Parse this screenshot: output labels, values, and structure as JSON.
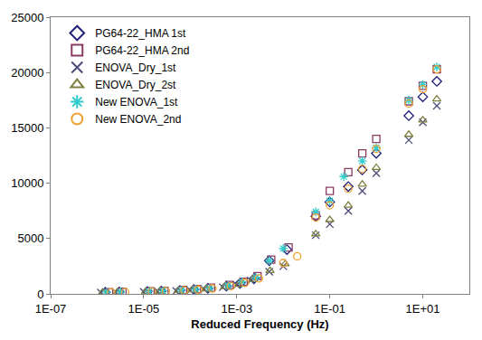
{
  "chart_data": {
    "type": "scatter",
    "x_label": "Reduced Frequency (Hz)",
    "log": "x",
    "grid": false,
    "legend": "top-left",
    "xlim": [
      1e-07,
      100
    ],
    "xticks": [
      {
        "value": 1e-07,
        "label": "1E-07"
      },
      {
        "value": 1e-05,
        "label": "1E-05"
      },
      {
        "value": 0.001,
        "label": "1E-03"
      },
      {
        "value": 0.1,
        "label": "1E-01"
      },
      {
        "value": 10,
        "label": "1E+01"
      }
    ],
    "ylim": [
      0,
      25000
    ],
    "yticks": [
      0,
      5000,
      10000,
      15000,
      20000,
      25000
    ],
    "series": [
      {
        "name": "PG64-22_HMA 1st",
        "color": "#1f1f7a",
        "marker": "diamond",
        "x": [
          1.5e-06,
          3e-06,
          1.2e-05,
          2.4e-05,
          6e-05,
          0.00012,
          0.00024,
          0.0006,
          0.0012,
          0.0024,
          0.005,
          0.012,
          0.05,
          0.1,
          0.25,
          0.5,
          1,
          5,
          10,
          20
        ],
        "values": [
          150,
          180,
          220,
          260,
          320,
          400,
          500,
          700,
          1000,
          1400,
          3000,
          4000,
          7000,
          8300,
          9700,
          11200,
          12700,
          16100,
          17800,
          19200
        ]
      },
      {
        "name": "PG64-22_HMA 2nd",
        "color": "#8b3a62",
        "marker": "square",
        "x": [
          1.8e-06,
          3.5e-06,
          1.4e-05,
          2.8e-05,
          7e-05,
          0.00014,
          0.00028,
          0.0007,
          0.0014,
          0.0028,
          0.0055,
          0.013,
          0.05,
          0.1,
          0.25,
          0.5,
          1,
          5,
          10,
          20
        ],
        "values": [
          160,
          190,
          230,
          280,
          350,
          430,
          560,
          800,
          1100,
          1600,
          3100,
          4200,
          7100,
          9300,
          11000,
          12700,
          14000,
          17400,
          18800,
          20300
        ]
      },
      {
        "name": "ENOVA_Dry_1st",
        "color": "#4b4b7a",
        "marker": "x",
        "x": [
          1.2e-06,
          2.5e-06,
          1e-05,
          2e-05,
          5e-05,
          0.0001,
          0.0002,
          0.0005,
          0.001,
          0.002,
          0.005,
          0.01,
          0.05,
          0.1,
          0.25,
          0.5,
          1,
          5,
          10,
          20
        ],
        "values": [
          120,
          150,
          180,
          220,
          270,
          330,
          420,
          600,
          800,
          1200,
          2000,
          2500,
          5300,
          6300,
          7500,
          9300,
          10900,
          13900,
          15500,
          17000
        ]
      },
      {
        "name": "ENOVA_Dry_2st",
        "color": "#808040",
        "marker": "triangle",
        "x": [
          1.3e-06,
          2.7e-06,
          1.1e-05,
          2.2e-05,
          5.5e-05,
          0.00011,
          0.00022,
          0.00055,
          0.0011,
          0.0022,
          0.0052,
          0.011,
          0.05,
          0.1,
          0.25,
          0.5,
          1,
          5,
          10,
          20
        ],
        "values": [
          130,
          160,
          190,
          230,
          290,
          350,
          450,
          650,
          850,
          1300,
          2100,
          2700,
          5400,
          6700,
          8000,
          9900,
          11400,
          14400,
          15700,
          17600
        ]
      },
      {
        "name": "New ENOVA_1st",
        "color": "#33cccc",
        "marker": "asterisk",
        "x": [
          1.6e-06,
          3.2e-06,
          1.3e-05,
          2.6e-05,
          6.5e-05,
          0.00013,
          0.00026,
          0.00065,
          0.0013,
          0.0026,
          0.005,
          0.01,
          0.05,
          0.1,
          0.2,
          0.5,
          1,
          5,
          10,
          20
        ],
        "values": [
          150,
          180,
          220,
          270,
          330,
          420,
          530,
          750,
          1100,
          1500,
          3000,
          4100,
          7400,
          8400,
          10600,
          12000,
          13200,
          17500,
          18900,
          20500
        ]
      },
      {
        "name": "New ENOVA_2nd",
        "color": "#f0a030",
        "marker": "circle",
        "x": [
          2e-06,
          4e-06,
          1.5e-05,
          3e-05,
          7.5e-05,
          0.00015,
          0.0003,
          0.00075,
          0.0015,
          0.003,
          0.01,
          0.02,
          0.05,
          0.1,
          0.25,
          0.5,
          1,
          5,
          10,
          20
        ],
        "values": [
          140,
          170,
          210,
          250,
          310,
          390,
          490,
          700,
          1000,
          1400,
          2800,
          3400,
          6900,
          8000,
          9500,
          11300,
          13100,
          17200,
          18500,
          20300
        ]
      }
    ]
  }
}
